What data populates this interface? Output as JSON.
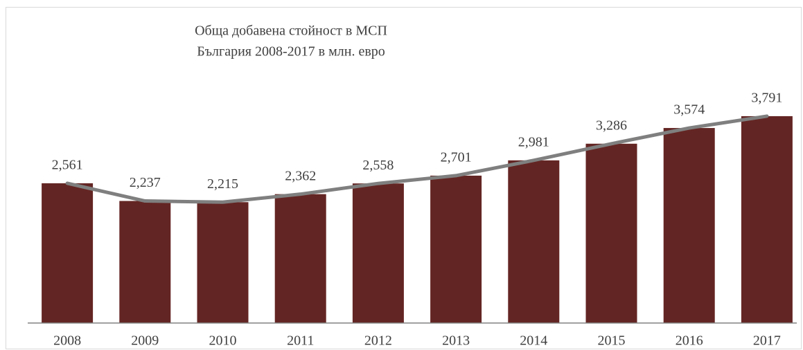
{
  "chart_data": {
    "type": "bar",
    "title": "Обща добавена стойност в МСП",
    "subtitle": "България 2008-2017 в млн. евро",
    "categories": [
      "2008",
      "2009",
      "2010",
      "2011",
      "2012",
      "2013",
      "2014",
      "2015",
      "2016",
      "2017"
    ],
    "values": [
      2561,
      2237,
      2215,
      2362,
      2558,
      2701,
      2981,
      3286,
      3574,
      3791
    ],
    "value_labels": [
      "2,561",
      "2,237",
      "2,215",
      "2,362",
      "2,558",
      "2,701",
      "2,981",
      "3,286",
      "3,574",
      "3,791"
    ],
    "color": "#632523",
    "line_color": "#7f7f7f",
    "ylim": [
      0,
      4500
    ]
  }
}
